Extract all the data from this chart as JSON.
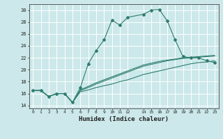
{
  "xlabel": "Humidex (Indice chaleur)",
  "background_color": "#cce8ea",
  "grid_color": "#ffffff",
  "line_color": "#2e7d6e",
  "xlim": [
    -0.5,
    23.5
  ],
  "ylim": [
    13.5,
    31.0
  ],
  "xticks": [
    0,
    1,
    2,
    3,
    4,
    5,
    6,
    7,
    8,
    9,
    10,
    11,
    12,
    14,
    15,
    16,
    17,
    18,
    19,
    20,
    21,
    22,
    23
  ],
  "yticks": [
    14,
    16,
    18,
    20,
    22,
    24,
    26,
    28,
    30
  ],
  "hours": [
    0,
    1,
    2,
    3,
    4,
    5,
    6,
    7,
    8,
    9,
    10,
    11,
    12,
    14,
    15,
    16,
    17,
    18,
    19,
    20,
    21,
    22,
    23
  ],
  "line1": [
    16.5,
    16.5,
    15.5,
    16.0,
    16.0,
    14.5,
    17.0,
    21.0,
    23.2,
    25.0,
    28.3,
    27.5,
    28.8,
    29.3,
    30.0,
    30.1,
    28.2,
    25.0,
    22.2,
    22.0,
    22.0,
    21.5,
    21.2
  ],
  "line2": [
    16.5,
    16.5,
    15.5,
    16.0,
    16.0,
    14.5,
    16.3,
    16.6,
    17.0,
    17.3,
    17.6,
    18.0,
    18.3,
    19.2,
    19.5,
    19.8,
    20.1,
    20.4,
    20.7,
    21.0,
    21.2,
    21.3,
    21.5
  ],
  "line3": [
    16.5,
    16.5,
    15.5,
    16.0,
    16.0,
    14.5,
    16.6,
    17.2,
    17.8,
    18.3,
    18.8,
    19.3,
    19.8,
    20.8,
    21.1,
    21.4,
    21.6,
    21.8,
    22.0,
    22.1,
    22.2,
    22.3,
    22.4
  ],
  "line4": [
    16.5,
    16.5,
    15.5,
    16.0,
    16.0,
    14.5,
    16.5,
    17.0,
    17.6,
    18.1,
    18.6,
    19.1,
    19.6,
    20.6,
    20.9,
    21.2,
    21.5,
    21.7,
    21.9,
    22.0,
    22.1,
    22.2,
    22.3
  ]
}
